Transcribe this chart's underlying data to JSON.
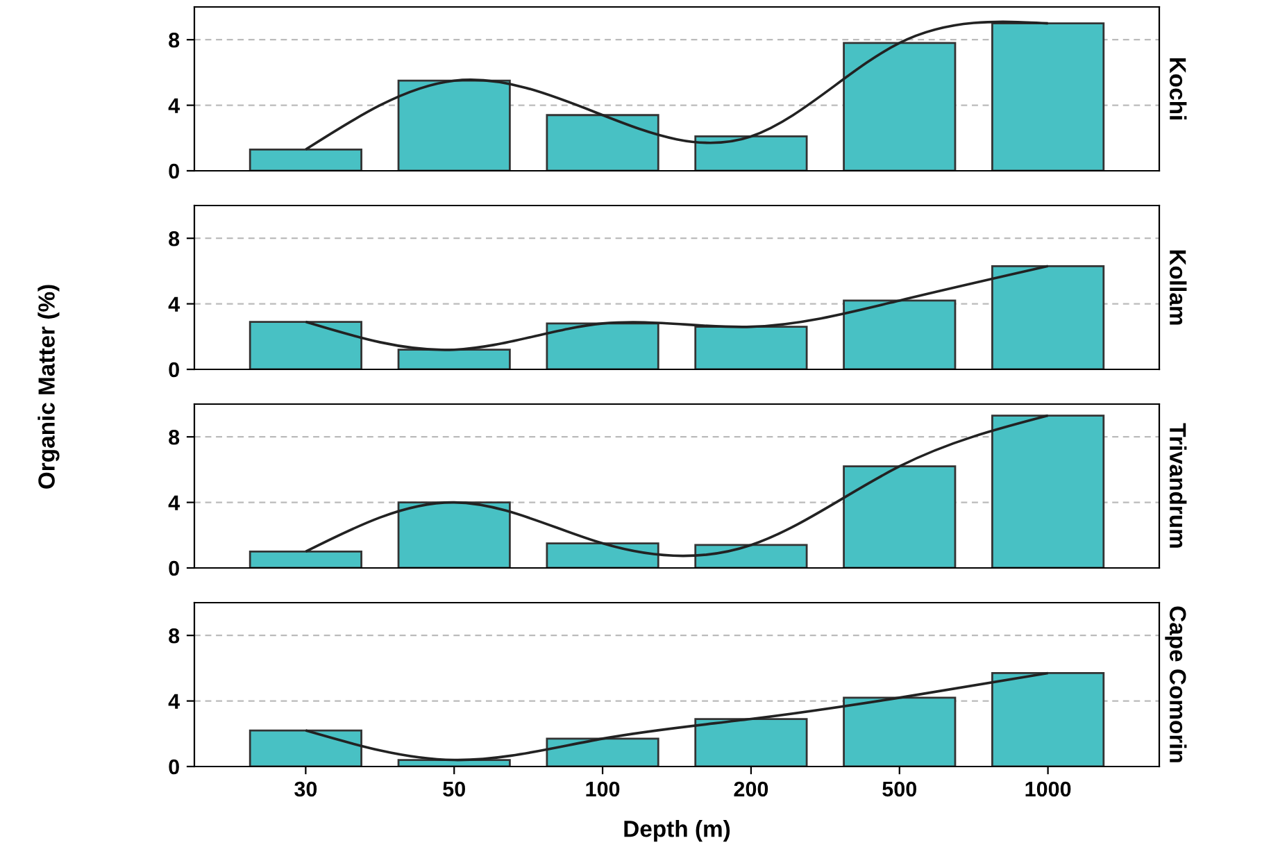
{
  "chart_data": [
    {
      "type": "bar",
      "title": "Kochi",
      "ylabel": "Organic Matter (%)",
      "categories": [
        "30",
        "50",
        "100",
        "200",
        "500",
        "1000"
      ],
      "ylim": [
        0,
        10
      ],
      "yticks": [
        0,
        4,
        8
      ],
      "grid": "y",
      "tick_labels": "y",
      "series": [
        {
          "color": "#48c1c4",
          "values": [
            1.3,
            5.5,
            3.4,
            2.1,
            7.8,
            9.0
          ]
        },
        {
          "type": "line",
          "color": "#222222",
          "values": [
            1.3,
            5.5,
            3.4,
            2.1,
            7.8,
            9.0
          ]
        }
      ]
    },
    {
      "type": "bar",
      "title": "Kollam",
      "categories": [
        "30",
        "50",
        "100",
        "200",
        "500",
        "1000"
      ],
      "ylim": [
        0,
        10
      ],
      "yticks": [
        0,
        4,
        8
      ],
      "grid": "y",
      "tick_labels": "y",
      "series": [
        {
          "color": "#48c1c4",
          "values": [
            2.9,
            1.2,
            2.8,
            2.6,
            4.2,
            6.3
          ]
        },
        {
          "type": "line",
          "color": "#222222",
          "values": [
            2.9,
            1.2,
            2.8,
            2.6,
            4.2,
            6.3
          ]
        }
      ]
    },
    {
      "type": "bar",
      "title": "Trivandrum",
      "categories": [
        "30",
        "50",
        "100",
        "200",
        "500",
        "1000"
      ],
      "ylim": [
        0,
        10
      ],
      "yticks": [
        0,
        4,
        8
      ],
      "grid": "y",
      "tick_labels": "y",
      "series": [
        {
          "color": "#48c1c4",
          "values": [
            1.0,
            4.0,
            1.5,
            1.4,
            6.2,
            9.3
          ]
        },
        {
          "type": "line",
          "color": "#222222",
          "values": [
            1.0,
            4.0,
            1.5,
            1.4,
            6.2,
            9.3
          ]
        }
      ]
    },
    {
      "type": "bar",
      "title": "Cape Comorin",
      "xlabel": "Depth (m)",
      "categories": [
        "30",
        "50",
        "100",
        "200",
        "500",
        "1000"
      ],
      "ylim": [
        0,
        10
      ],
      "yticks": [
        0,
        4,
        8
      ],
      "grid": "y",
      "series": [
        {
          "color": "#48c1c4",
          "values": [
            2.2,
            0.4,
            1.7,
            2.9,
            4.2,
            5.7
          ]
        },
        {
          "type": "line",
          "color": "#222222",
          "values": [
            2.2,
            0.4,
            1.7,
            2.9,
            4.2,
            5.7
          ]
        }
      ]
    }
  ]
}
